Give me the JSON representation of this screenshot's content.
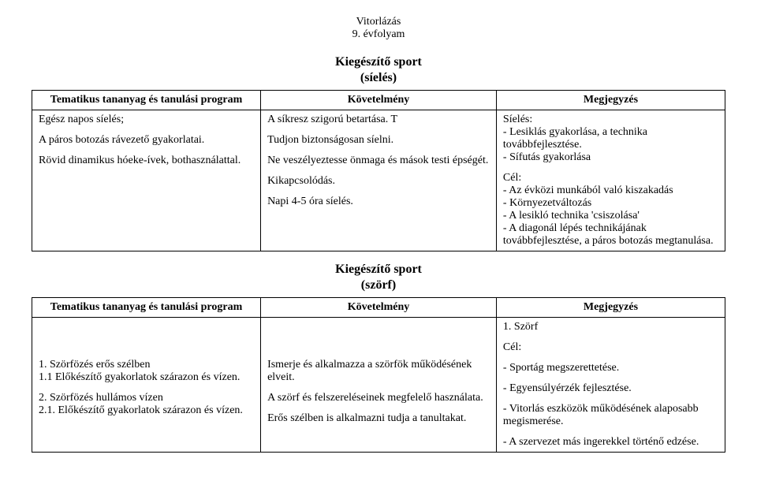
{
  "header": {
    "line1": "Vitorlázás",
    "line2": "9. évfolyam"
  },
  "section1": {
    "title": "Kiegészítő sport",
    "subtitle": "(síelés)",
    "table": {
      "headers": [
        "Tematikus tananyag és tanulási program",
        "Követelmény",
        "Megjegyzés"
      ],
      "row": {
        "col1": {
          "l1": "Egész napos síelés;",
          "l2": "A páros botozás rávezető gyakorlatai.",
          "l3": "Rövid dinamikus hóeke-ívek, bothasználattal."
        },
        "col2": {
          "l1": "A síkresz szigorú betartása. T",
          "l2": "Tudjon biztonságosan síelni.",
          "l3": "Ne veszélyeztesse önmaga és mások testi épségét.",
          "l4": "Kikapcsolódás.",
          "l5": "Napi 4-5 óra síelés."
        },
        "col3": {
          "l1": "Síelés:",
          "l2": "- Lesiklás gyakorlása, a technika továbbfejlesztése.",
          "l3": "- Sífutás gyakorlása",
          "l4": "Cél:",
          "l5": "- Az évközi munkából való kiszakadás",
          "l6": "- Környezetváltozás",
          "l7": "- A lesikló technika 'csiszolása'",
          "l8": "- A diagonál lépés technikájának továbbfejlesztése, a páros botozás megtanulása."
        }
      }
    }
  },
  "section2": {
    "title": "Kiegészítő sport",
    "subtitle": "(szörf)",
    "table": {
      "headers": [
        "Tematikus tananyag és tanulási program",
        "Követelmény",
        "Megjegyzés"
      ],
      "row": {
        "col1": {
          "l1": "1. Szörfözés erős szélben",
          "l2": "1.1 Előkészítő gyakorlatok szárazon és vízen.",
          "l3": "2. Szörfözés hullámos vízen",
          "l4": "2.1. Előkészítő gyakorlatok szárazon és vízen."
        },
        "col2": {
          "l1": "Ismerje és alkalmazza a szörfök működésének elveit.",
          "l2": "A szörf és felszereléseinek megfelelő használata.",
          "l3": "Erős szélben is alkalmazni tudja a tanultakat."
        },
        "col3": {
          "l1": "1. Szörf",
          "l2": "Cél:",
          "l3": "- Sportág megszerettetése.",
          "l4": "- Egyensúlyérzék fejlesztése.",
          "l5": "- Vitorlás eszközök működésének alaposabb megismerése.",
          "l6": "- A szervezet más ingerekkel történő edzése."
        }
      }
    }
  }
}
